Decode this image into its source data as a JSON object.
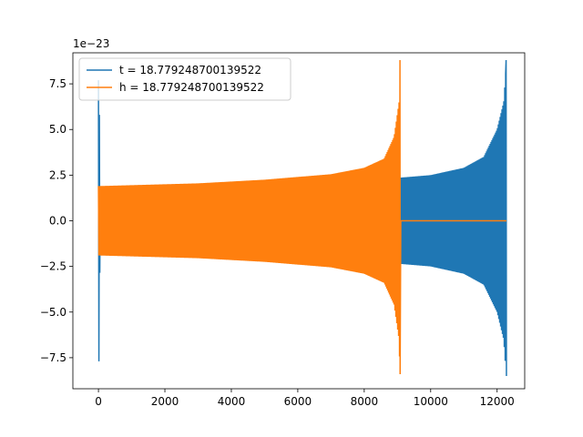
{
  "chart_data": {
    "type": "line",
    "title": "",
    "xlabel": "",
    "ylabel": "",
    "offset_label": "1e−23",
    "xlim": [
      -770,
      12830
    ],
    "ylim": [
      -9.2,
      9.2
    ],
    "x_ticks": [
      0,
      2000,
      4000,
      6000,
      8000,
      10000,
      12000
    ],
    "x_tick_labels": [
      "0",
      "2000",
      "4000",
      "6000",
      "8000",
      "10000",
      "12000"
    ],
    "y_ticks": [
      -7.5,
      -5.0,
      -2.5,
      0.0,
      2.5,
      5.0,
      7.5
    ],
    "y_tick_labels": [
      "−7.5",
      "−5.0",
      "−2.5",
      "0.0",
      "2.5",
      "5.0",
      "7.5"
    ],
    "grid": false,
    "legend_position": "top-left",
    "series": [
      {
        "name": "t = 18.779248700139522",
        "color": "#1f77b4",
        "description": "oscillating chirp signal: burst near x=0, constant-frequency region, amplitude grows toward merger at x≈12280",
        "x_range": [
          0,
          12280
        ],
        "envelope": [
          [
            0,
            7.7
          ],
          [
            50,
            1.8
          ],
          [
            1000,
            1.85
          ],
          [
            3000,
            1.95
          ],
          [
            5000,
            2.05
          ],
          [
            7000,
            2.2
          ],
          [
            9000,
            2.35
          ],
          [
            10000,
            2.5
          ],
          [
            11000,
            2.9
          ],
          [
            11600,
            3.5
          ],
          [
            12000,
            5.0
          ],
          [
            12200,
            6.5
          ],
          [
            12280,
            8.7
          ]
        ],
        "min_at_end": -8.5,
        "max_at_end": 8.8
      },
      {
        "name": "h = 18.779248700139522",
        "color": "#ff7f0e",
        "description": "oscillating chirp signal shifted left, amplitude grows toward merger at x≈9080, then zero until x≈12280",
        "x_range": [
          0,
          12280
        ],
        "envelope": [
          [
            0,
            1.9
          ],
          [
            1000,
            1.95
          ],
          [
            3000,
            2.05
          ],
          [
            5000,
            2.25
          ],
          [
            7000,
            2.55
          ],
          [
            8000,
            2.9
          ],
          [
            8600,
            3.4
          ],
          [
            8900,
            4.6
          ],
          [
            9050,
            6.5
          ],
          [
            9080,
            8.8
          ]
        ],
        "zero_after": 9100,
        "min_at_end": -8.4,
        "max_at_end": 8.8
      }
    ]
  }
}
